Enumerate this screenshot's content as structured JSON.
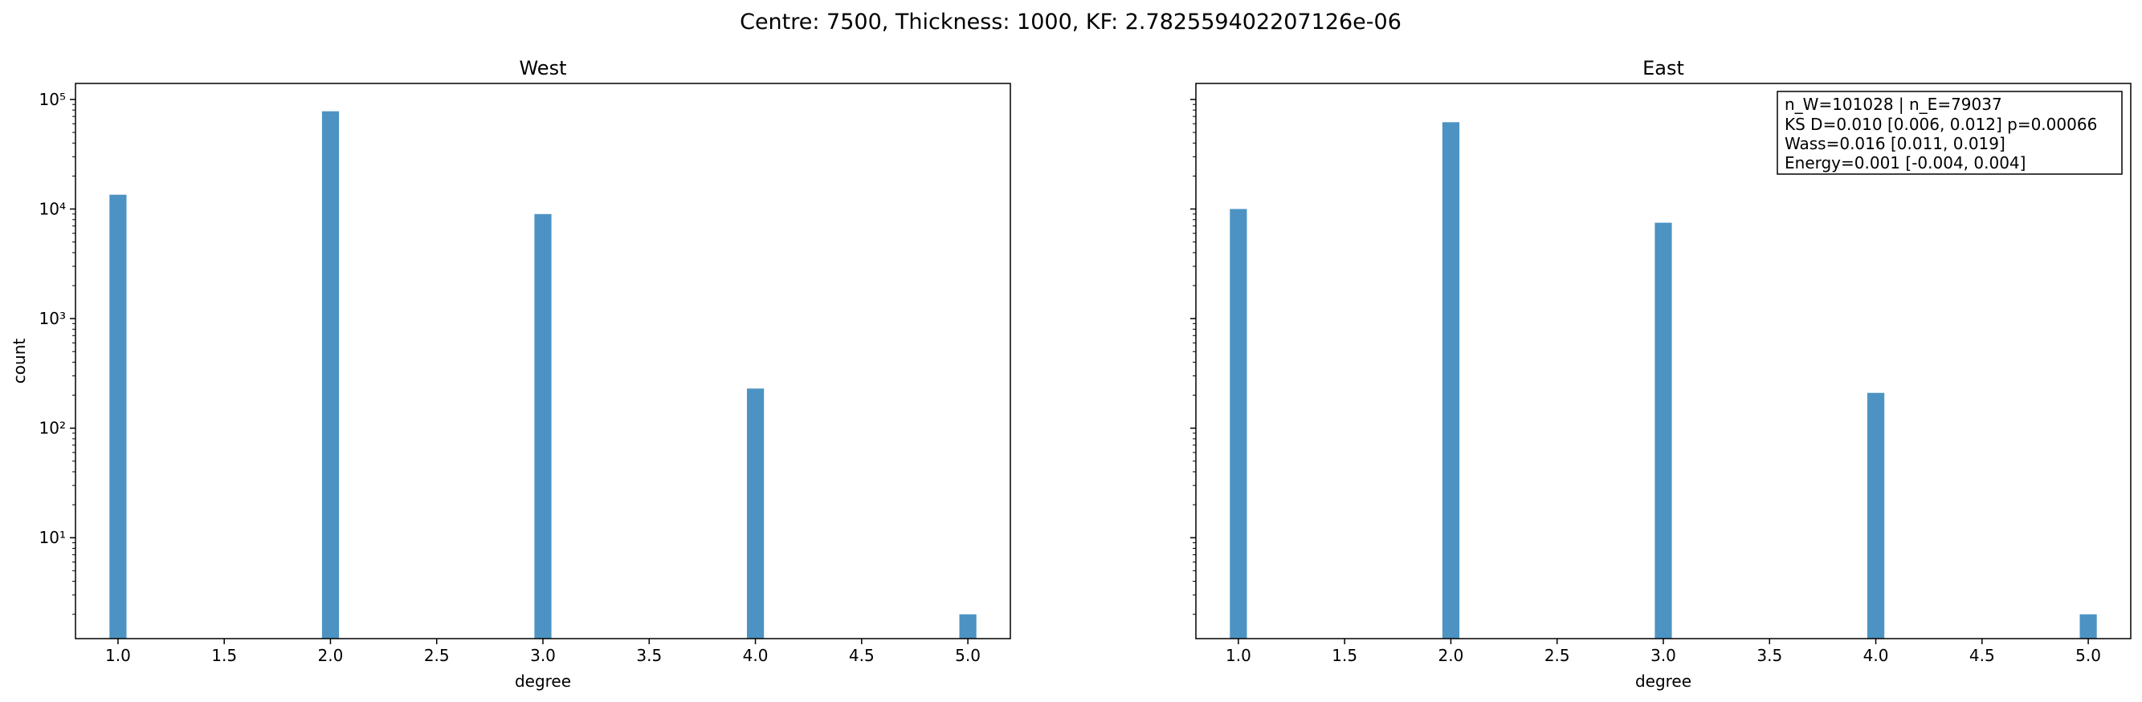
{
  "figure": {
    "suptitle": "Centre: 7500, Thickness: 1000, KF: 2.782559402207126e-06"
  },
  "chart_data": [
    {
      "type": "bar",
      "title": "West",
      "xlabel": "degree",
      "ylabel": "count",
      "yscale": "log",
      "xlim": [
        0.8,
        5.2
      ],
      "ylim": [
        1.2,
        140000
      ],
      "x_ticks": [
        "1.0",
        "1.5",
        "2.0",
        "2.5",
        "3.0",
        "3.5",
        "4.0",
        "4.5",
        "5.0"
      ],
      "y_ticks": [
        10,
        100,
        1000,
        10000,
        100000
      ],
      "grid": false,
      "bar_color": "#4c93c3",
      "categories": [
        1,
        2,
        3,
        4,
        5
      ],
      "values": [
        13500,
        78000,
        9000,
        230,
        2
      ]
    },
    {
      "type": "bar",
      "title": "East",
      "xlabel": "degree",
      "ylabel": "",
      "yscale": "log",
      "xlim": [
        0.8,
        5.2
      ],
      "ylim": [
        1.2,
        140000
      ],
      "x_ticks": [
        "1.0",
        "1.5",
        "2.0",
        "2.5",
        "3.0",
        "3.5",
        "4.0",
        "4.5",
        "5.0"
      ],
      "y_ticks": [],
      "grid": false,
      "bar_color": "#4c93c3",
      "categories": [
        1,
        2,
        3,
        4,
        5
      ],
      "values": [
        10000,
        62000,
        7500,
        210,
        2
      ],
      "annotation": [
        "n_W=101028 | n_E=79037",
        "KS D=0.010 [0.006, 0.012]  p=0.00066",
        "Wass=0.016 [0.011, 0.019]",
        "Energy=0.001 [-0.004, 0.004]"
      ]
    }
  ]
}
